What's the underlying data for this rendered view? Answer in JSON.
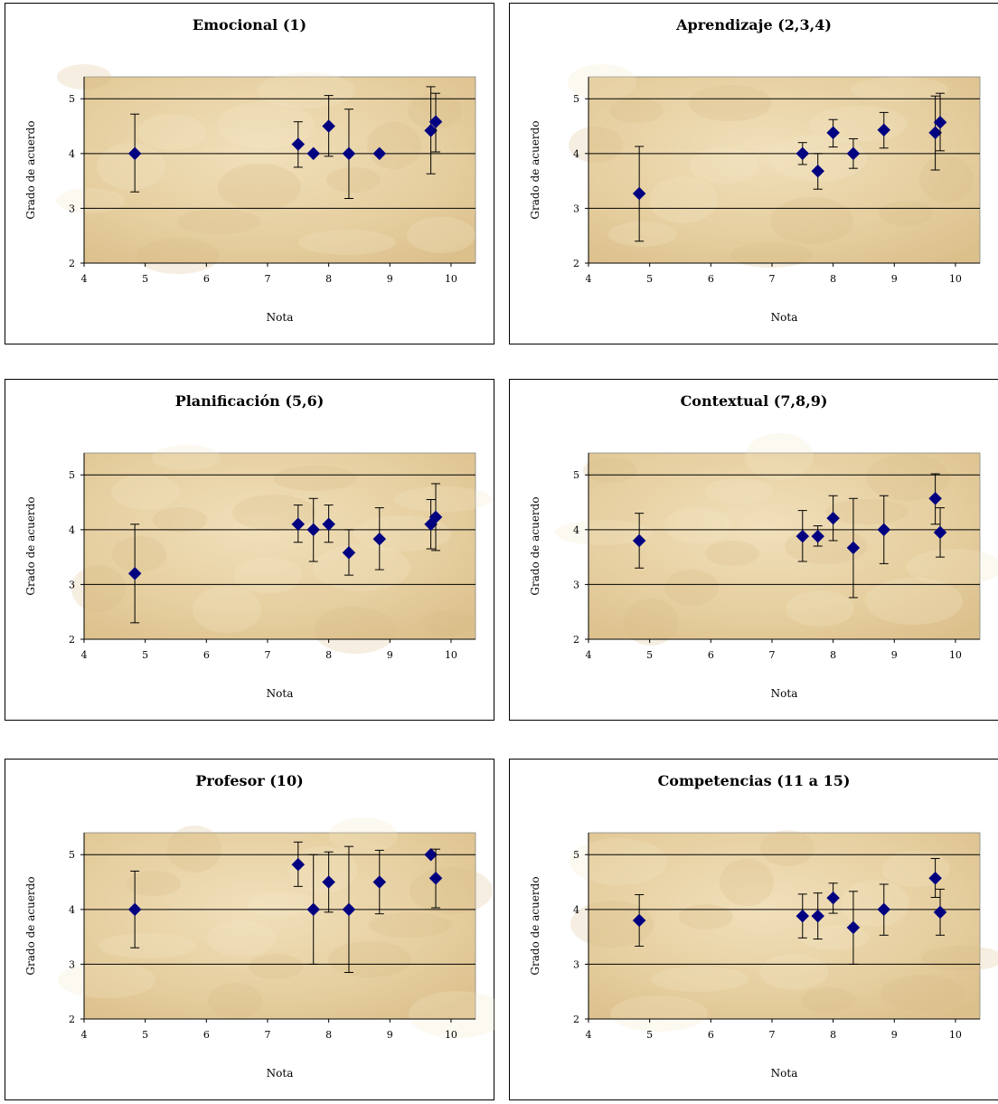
{
  "charts_meta": {
    "xlabel": "Nota",
    "ylabel": "Grado de acuerdo",
    "marker_color": "#000080",
    "plot_bg": "#e8d2a6"
  },
  "chart_data": [
    {
      "type": "scatter",
      "title": "Emocional (1)",
      "xlabel": "Nota",
      "ylabel": "Grado de acuerdo",
      "xlim": [
        4,
        10.4
      ],
      "ylim": [
        2,
        5.4
      ],
      "xticks": [
        4,
        5,
        6,
        7,
        8,
        9,
        10
      ],
      "yticks": [
        2,
        3,
        4,
        5
      ],
      "grid_y": [
        3,
        4,
        5
      ],
      "points": [
        {
          "x": 4.83,
          "y": 4.0,
          "low": 3.3,
          "high": 4.72
        },
        {
          "x": 7.5,
          "y": 4.17,
          "low": 3.75,
          "high": 4.58
        },
        {
          "x": 7.75,
          "y": 4.0,
          "low": 4.0,
          "high": 4.0
        },
        {
          "x": 8.0,
          "y": 4.5,
          "low": 3.95,
          "high": 5.06
        },
        {
          "x": 8.33,
          "y": 4.0,
          "low": 3.18,
          "high": 4.81
        },
        {
          "x": 8.83,
          "y": 4.0,
          "low": 4.0,
          "high": 4.0
        },
        {
          "x": 9.67,
          "y": 4.42,
          "low": 3.63,
          "high": 5.22
        },
        {
          "x": 9.75,
          "y": 4.58,
          "low": 4.03,
          "high": 5.1
        }
      ]
    },
    {
      "type": "scatter",
      "title": "Aprendizaje (2,3,4)",
      "xlabel": "Nota",
      "ylabel": "Grado de acuerdo",
      "xlim": [
        4,
        10.4
      ],
      "ylim": [
        2,
        5.4
      ],
      "xticks": [
        4,
        5,
        6,
        7,
        8,
        9,
        10
      ],
      "yticks": [
        2,
        3,
        4,
        5
      ],
      "grid_y": [
        3,
        4,
        5
      ],
      "points": [
        {
          "x": 4.83,
          "y": 3.27,
          "low": 2.4,
          "high": 4.13
        },
        {
          "x": 7.5,
          "y": 4.0,
          "low": 3.8,
          "high": 4.2
        },
        {
          "x": 7.75,
          "y": 3.68,
          "low": 3.35,
          "high": 4.0
        },
        {
          "x": 8.0,
          "y": 4.38,
          "low": 4.12,
          "high": 4.62
        },
        {
          "x": 8.33,
          "y": 4.0,
          "low": 3.73,
          "high": 4.27
        },
        {
          "x": 8.83,
          "y": 4.43,
          "low": 4.1,
          "high": 4.75
        },
        {
          "x": 9.67,
          "y": 4.38,
          "low": 3.7,
          "high": 5.05
        },
        {
          "x": 9.75,
          "y": 4.57,
          "low": 4.05,
          "high": 5.1
        }
      ]
    },
    {
      "type": "scatter",
      "title": "Planificación (5,6)",
      "xlabel": "Nota",
      "ylabel": "Grado de acuerdo",
      "xlim": [
        4,
        10.4
      ],
      "ylim": [
        2,
        5.4
      ],
      "xticks": [
        4,
        5,
        6,
        7,
        8,
        9,
        10
      ],
      "yticks": [
        2,
        3,
        4,
        5
      ],
      "grid_y": [
        3,
        4,
        5
      ],
      "points": [
        {
          "x": 4.83,
          "y": 3.2,
          "low": 2.3,
          "high": 4.1
        },
        {
          "x": 7.5,
          "y": 4.1,
          "low": 3.77,
          "high": 4.45
        },
        {
          "x": 7.75,
          "y": 4.0,
          "low": 3.42,
          "high": 4.57
        },
        {
          "x": 8.0,
          "y": 4.1,
          "low": 3.77,
          "high": 4.45
        },
        {
          "x": 8.33,
          "y": 3.58,
          "low": 3.17,
          "high": 4.0
        },
        {
          "x": 8.83,
          "y": 3.83,
          "low": 3.27,
          "high": 4.4
        },
        {
          "x": 9.67,
          "y": 4.1,
          "low": 3.65,
          "high": 4.55
        },
        {
          "x": 9.75,
          "y": 4.23,
          "low": 3.62,
          "high": 4.84
        }
      ]
    },
    {
      "type": "scatter",
      "title": "Contextual (7,8,9)",
      "xlabel": "Nota",
      "ylabel": "Grado de acuerdo",
      "xlim": [
        4,
        10.4
      ],
      "ylim": [
        2,
        5.4
      ],
      "xticks": [
        4,
        5,
        6,
        7,
        8,
        9,
        10
      ],
      "yticks": [
        2,
        3,
        4,
        5
      ],
      "grid_y": [
        3,
        4,
        5
      ],
      "points": [
        {
          "x": 4.83,
          "y": 3.8,
          "low": 3.3,
          "high": 4.3
        },
        {
          "x": 7.5,
          "y": 3.88,
          "low": 3.42,
          "high": 4.35
        },
        {
          "x": 7.75,
          "y": 3.88,
          "low": 3.7,
          "high": 4.07
        },
        {
          "x": 8.0,
          "y": 4.21,
          "low": 3.8,
          "high": 4.62
        },
        {
          "x": 8.33,
          "y": 3.67,
          "low": 2.76,
          "high": 4.57
        },
        {
          "x": 8.83,
          "y": 4.0,
          "low": 3.38,
          "high": 4.62
        },
        {
          "x": 9.67,
          "y": 4.57,
          "low": 4.1,
          "high": 5.02
        },
        {
          "x": 9.75,
          "y": 3.95,
          "low": 3.5,
          "high": 4.4
        }
      ]
    },
    {
      "type": "scatter",
      "title": "Profesor (10)",
      "xlabel": "Nota",
      "ylabel": "Grado de acuerdo",
      "xlim": [
        4,
        10.4
      ],
      "ylim": [
        2,
        5.4
      ],
      "xticks": [
        4,
        5,
        6,
        7,
        8,
        9,
        10
      ],
      "yticks": [
        2,
        3,
        4,
        5
      ],
      "grid_y": [
        3,
        4,
        5
      ],
      "points": [
        {
          "x": 4.83,
          "y": 4.0,
          "low": 3.3,
          "high": 4.7
        },
        {
          "x": 7.5,
          "y": 4.82,
          "low": 4.42,
          "high": 5.23
        },
        {
          "x": 7.75,
          "y": 4.0,
          "low": 3.0,
          "high": 5.0
        },
        {
          "x": 8.0,
          "y": 4.5,
          "low": 3.95,
          "high": 5.05
        },
        {
          "x": 8.33,
          "y": 4.0,
          "low": 2.85,
          "high": 5.15
        },
        {
          "x": 8.83,
          "y": 4.5,
          "low": 3.92,
          "high": 5.08
        },
        {
          "x": 9.67,
          "y": 5.0,
          "low": 5.0,
          "high": 5.0
        },
        {
          "x": 9.75,
          "y": 4.57,
          "low": 4.03,
          "high": 5.1
        }
      ]
    },
    {
      "type": "scatter",
      "title": "Competencias (11 a 15)",
      "xlabel": "Nota",
      "ylabel": "Grado de acuerdo",
      "xlim": [
        4,
        10.4
      ],
      "ylim": [
        2,
        5.4
      ],
      "xticks": [
        4,
        5,
        6,
        7,
        8,
        9,
        10
      ],
      "yticks": [
        2,
        3,
        4,
        5
      ],
      "grid_y": [
        3,
        4,
        5
      ],
      "points": [
        {
          "x": 4.83,
          "y": 3.8,
          "low": 3.33,
          "high": 4.27
        },
        {
          "x": 7.5,
          "y": 3.88,
          "low": 3.48,
          "high": 4.28
        },
        {
          "x": 7.75,
          "y": 3.88,
          "low": 3.46,
          "high": 4.3
        },
        {
          "x": 8.0,
          "y": 4.21,
          "low": 3.93,
          "high": 4.48
        },
        {
          "x": 8.33,
          "y": 3.67,
          "low": 3.0,
          "high": 4.33
        },
        {
          "x": 8.83,
          "y": 4.0,
          "low": 3.53,
          "high": 4.46
        },
        {
          "x": 9.67,
          "y": 4.57,
          "low": 4.22,
          "high": 4.93
        },
        {
          "x": 9.75,
          "y": 3.95,
          "low": 3.53,
          "high": 4.37
        }
      ]
    }
  ]
}
